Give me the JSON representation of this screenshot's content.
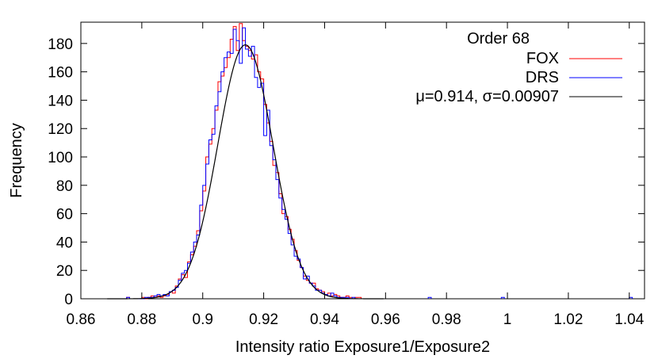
{
  "chart_data": {
    "type": "histogram",
    "title": "",
    "xlabel": "Intensity ratio Exposure1/Exposure2",
    "ylabel": "Frequency",
    "xlim": [
      0.86,
      1.045
    ],
    "ylim": [
      0,
      195
    ],
    "xticks": [
      0.86,
      0.88,
      0.9,
      0.92,
      0.94,
      0.96,
      0.98,
      1.0,
      1.02,
      1.04
    ],
    "xtick_labels": [
      "0.86",
      "0.88",
      "0.9",
      "0.92",
      "0.94",
      "0.96",
      "0.98",
      "1",
      "1.02",
      "1.04"
    ],
    "yticks": [
      0,
      20,
      40,
      60,
      80,
      100,
      120,
      140,
      160,
      180
    ],
    "ytick_labels": [
      "0",
      "20",
      "40",
      "60",
      "80",
      "100",
      "120",
      "140",
      "160",
      "180"
    ],
    "grid": false,
    "legend": {
      "placement": "top-right",
      "heading": "Order 68",
      "entries": [
        {
          "label": "FOX",
          "color": "#ff0000"
        },
        {
          "label": "DRS",
          "color": "#0000ff"
        },
        {
          "label": "μ=0.914, σ=0.00907",
          "color": "#000000"
        }
      ]
    },
    "bin_width": 0.001,
    "series": [
      {
        "name": "FOX",
        "kind": "step",
        "color": "#ff0000",
        "x": [
          0.875,
          0.876,
          0.877,
          0.878,
          0.879,
          0.88,
          0.881,
          0.882,
          0.883,
          0.884,
          0.885,
          0.886,
          0.887,
          0.888,
          0.889,
          0.89,
          0.891,
          0.892,
          0.893,
          0.894,
          0.895,
          0.896,
          0.897,
          0.898,
          0.899,
          0.9,
          0.901,
          0.902,
          0.903,
          0.904,
          0.905,
          0.906,
          0.907,
          0.908,
          0.909,
          0.91,
          0.911,
          0.912,
          0.913,
          0.914,
          0.915,
          0.916,
          0.917,
          0.918,
          0.919,
          0.92,
          0.921,
          0.922,
          0.923,
          0.924,
          0.925,
          0.926,
          0.927,
          0.928,
          0.929,
          0.93,
          0.931,
          0.932,
          0.933,
          0.934,
          0.935,
          0.936,
          0.937,
          0.938,
          0.939,
          0.94,
          0.941,
          0.942,
          0.943,
          0.944,
          0.945,
          0.946,
          0.947,
          0.948,
          0.949,
          0.95,
          0.951,
          0.952,
          0.953
        ],
        "y": [
          1,
          0,
          0,
          0,
          0,
          1,
          0,
          1,
          2,
          1,
          2,
          1,
          2,
          3,
          5,
          4,
          9,
          14,
          17,
          15,
          26,
          31,
          37,
          48,
          62,
          76,
          100,
          109,
          120,
          133,
          153,
          157,
          163,
          170,
          183,
          192,
          175,
          194,
          182,
          178,
          175,
          169,
          172,
          160,
          155,
          137,
          124,
          111,
          94,
          89,
          74,
          60,
          58,
          49,
          42,
          34,
          27,
          22,
          16,
          13,
          11,
          11,
          7,
          6,
          5,
          3,
          4,
          2,
          3,
          2,
          1,
          1,
          2,
          1,
          0,
          1,
          1,
          0,
          0
        ]
      },
      {
        "name": "DRS",
        "kind": "step",
        "color": "#0000ff",
        "x": [
          0.875,
          0.876,
          0.877,
          0.878,
          0.879,
          0.88,
          0.881,
          0.882,
          0.883,
          0.884,
          0.885,
          0.886,
          0.887,
          0.888,
          0.889,
          0.89,
          0.891,
          0.892,
          0.893,
          0.894,
          0.895,
          0.896,
          0.897,
          0.898,
          0.899,
          0.9,
          0.901,
          0.902,
          0.903,
          0.904,
          0.905,
          0.906,
          0.907,
          0.908,
          0.909,
          0.91,
          0.911,
          0.912,
          0.913,
          0.914,
          0.915,
          0.916,
          0.917,
          0.918,
          0.919,
          0.92,
          0.921,
          0.922,
          0.923,
          0.924,
          0.925,
          0.926,
          0.927,
          0.928,
          0.929,
          0.93,
          0.931,
          0.932,
          0.933,
          0.934,
          0.935,
          0.936,
          0.937,
          0.938,
          0.939,
          0.94,
          0.941,
          0.942,
          0.943,
          0.944,
          0.945,
          0.946,
          0.947,
          0.948,
          0.949,
          0.95,
          0.951,
          0.952,
          0.953
        ],
        "y": [
          1,
          0,
          0,
          0,
          0,
          0,
          1,
          1,
          1,
          2,
          3,
          2,
          3,
          2,
          5,
          6,
          8,
          13,
          18,
          20,
          25,
          33,
          40,
          45,
          66,
          80,
          95,
          112,
          116,
          136,
          146,
          160,
          170,
          174,
          173,
          190,
          182,
          166,
          191,
          176,
          171,
          178,
          156,
          149,
          152,
          115,
          133,
          108,
          98,
          84,
          71,
          63,
          56,
          46,
          38,
          30,
          28,
          22,
          14,
          16,
          11,
          9,
          6,
          6,
          4,
          3,
          2,
          4,
          2,
          1,
          1,
          1,
          1,
          0,
          1,
          0,
          0,
          0,
          0
        ]
      },
      {
        "name": "μ=0.914, σ=0.00907",
        "kind": "gaussian",
        "color": "#000000",
        "mu": 0.914,
        "sigma": 0.00907,
        "peak": 179
      }
    ],
    "outliers": [
      {
        "x": 0.974,
        "y": 1
      },
      {
        "x": 0.998,
        "y": 1
      },
      {
        "x": 1.04,
        "y": 1
      }
    ]
  }
}
